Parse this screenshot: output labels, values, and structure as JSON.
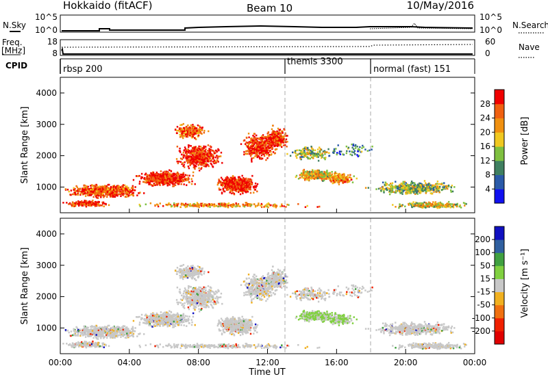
{
  "header": {
    "station": "Hokkaido (fitACF)",
    "beam": "Beam 10",
    "date": "10/May/2016"
  },
  "top_panels": {
    "nsky": {
      "label": "N.Sky",
      "ticks": [
        "10^5",
        "10^0"
      ]
    },
    "nsearch": {
      "label": "N.Search",
      "ticks": [
        "10^5",
        "10^0"
      ]
    },
    "freq": {
      "label": "Freq.",
      "unit": "[MHz]",
      "ticks": [
        "18",
        "8"
      ]
    },
    "nave": {
      "label": "Nave",
      "ticks": [
        "60",
        "0"
      ]
    },
    "cpid": {
      "label": "CPID",
      "modes": [
        {
          "name": "rbsp 200",
          "start_hour": 0
        },
        {
          "name": "themis 3300",
          "start_hour": 13
        },
        {
          "name": "normal (fast) 151",
          "start_hour": 18
        }
      ]
    }
  },
  "chart_data": [
    {
      "type": "heatmap",
      "panel": "power",
      "xlabel": "",
      "ylabel": "Slant Range [km]",
      "xlim": [
        0,
        24
      ],
      "ylim": [
        180,
        4500
      ],
      "yticks": [
        "1000",
        "2000",
        "3000",
        "4000"
      ],
      "yticks_values": [
        1000,
        2000,
        3000,
        4000
      ],
      "colorbar": {
        "label": "Power [dB]",
        "ticks": [
          "4",
          "8",
          "12",
          "16",
          "20",
          "24",
          "28"
        ],
        "levels": [
          0,
          4,
          8,
          12,
          16,
          20,
          24,
          28,
          32
        ],
        "colors": [
          "#1010f0",
          "#2a5aa8",
          "#3f7f60",
          "#7fc040",
          "#f0c820",
          "#f09010",
          "#f06010",
          "#f00000"
        ]
      }
    },
    {
      "type": "heatmap",
      "panel": "velocity",
      "xlabel": "Time UT",
      "ylabel": "Slant Range [km]",
      "xlim": [
        0,
        24
      ],
      "ylim": [
        180,
        4500
      ],
      "xticks": [
        "00:00",
        "04:00",
        "08:00",
        "12:00",
        "16:00",
        "20:00",
        "00:00"
      ],
      "xticks_values": [
        0,
        4,
        8,
        12,
        16,
        20,
        24
      ],
      "yticks": [
        "1000",
        "2000",
        "3000",
        "4000"
      ],
      "yticks_values": [
        1000,
        2000,
        3000,
        4000
      ],
      "colorbar": {
        "label": "Velocity [m s⁻¹]",
        "ticks": [
          "200",
          "100",
          "50",
          "15",
          "-15",
          "-50",
          "-100",
          "-200"
        ],
        "colors": [
          "#1010c0",
          "#3060a0",
          "#40a040",
          "#80d040",
          "#c8c8c8",
          "#f0b020",
          "#f07010",
          "#f02000",
          "#e00000"
        ]
      }
    }
  ]
}
